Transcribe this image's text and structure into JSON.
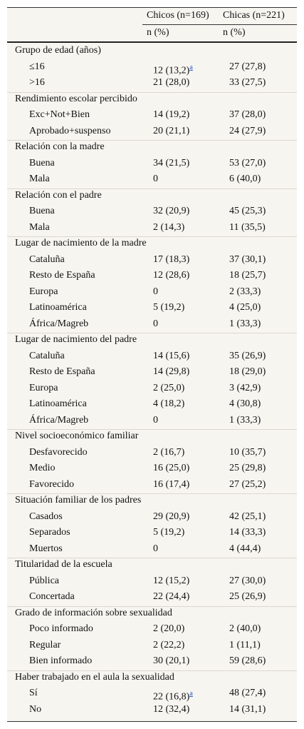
{
  "table": {
    "header": [
      [
        "Chicos (n=169)",
        "Chicas (n=221)"
      ],
      [
        "n (%)",
        "n (%)"
      ]
    ],
    "groups": [
      {
        "label": "Grupo de edad (años)",
        "rows": [
          {
            "label": "≤16",
            "values": [
              {
                "text": "12 (13,2)",
                "note": "a"
              },
              "27 (27,8)"
            ]
          },
          {
            "label": ">16",
            "values": [
              "21 (28,0)",
              "33 (27,5)"
            ]
          }
        ]
      },
      {
        "label": "Rendimiento escolar percibido",
        "rows": [
          {
            "label": "Exc+Not+Bien",
            "values": [
              "14 (19,2)",
              "37 (28,0)"
            ]
          },
          {
            "label": "Aprobado+suspenso",
            "values": [
              "20 (21,1)",
              "24 (27,9)"
            ]
          }
        ]
      },
      {
        "label": "Relación con la madre",
        "rows": [
          {
            "label": "Buena",
            "values": [
              "34 (21,5)",
              "53 (27,0)"
            ]
          },
          {
            "label": "Mala",
            "values": [
              "0",
              "6 (40,0)"
            ]
          }
        ]
      },
      {
        "label": "Relación con el padre",
        "rows": [
          {
            "label": "Buena",
            "values": [
              "32 (20,9)",
              "45 (25,3)"
            ]
          },
          {
            "label": "Mala",
            "values": [
              "2 (14,3)",
              "11 (35,5)"
            ]
          }
        ]
      },
      {
        "label": "Lugar de nacimiento de la madre",
        "rows": [
          {
            "label": "Cataluña",
            "values": [
              "17 (18,3)",
              "37 (30,1)"
            ]
          },
          {
            "label": "Resto de España",
            "values": [
              "12 (28,6)",
              "18 (25,7)"
            ]
          },
          {
            "label": "Europa",
            "values": [
              "0",
              "2 (33,3)"
            ]
          },
          {
            "label": "Latinoamérica",
            "values": [
              "5 (19,2)",
              "4 (25,0)"
            ]
          },
          {
            "label": "África/Magreb",
            "values": [
              "0",
              "1 (33,3)"
            ]
          }
        ]
      },
      {
        "label": "Lugar de nacimiento del padre",
        "rows": [
          {
            "label": "Cataluña",
            "values": [
              "14 (15,6)",
              "35 (26,9)"
            ]
          },
          {
            "label": "Resto de España",
            "values": [
              "14 (29,8)",
              "18 (29,0)"
            ]
          },
          {
            "label": "Europa",
            "values": [
              "2 (25,0)",
              "3 (42,9)"
            ]
          },
          {
            "label": "Latinoamérica",
            "values": [
              "4 (18,2)",
              "4 (30,8)"
            ]
          },
          {
            "label": "África/Magreb",
            "values": [
              "0",
              "1 (33,3)"
            ]
          }
        ]
      },
      {
        "label": "Nivel socioeconómico familiar",
        "rows": [
          {
            "label": "Desfavorecido",
            "values": [
              "2 (16,7)",
              "10 (35,7)"
            ]
          },
          {
            "label": "Medio",
            "values": [
              "16 (25,0)",
              "25 (29,8)"
            ]
          },
          {
            "label": "Favorecido",
            "values": [
              "16 (17,4)",
              "27 (25,2)"
            ]
          }
        ]
      },
      {
        "label": "Situación familiar de los padres",
        "rows": [
          {
            "label": "Casados",
            "values": [
              "29 (20,9)",
              "42 (25,1)"
            ]
          },
          {
            "label": "Separados",
            "values": [
              "5 (19,2)",
              "14 (33,3)"
            ]
          },
          {
            "label": "Muertos",
            "values": [
              "0",
              "4 (44,4)"
            ]
          }
        ]
      },
      {
        "label": "Titularidad de la escuela",
        "rows": [
          {
            "label": "Pública",
            "values": [
              "12 (15,2)",
              "27 (30,0)"
            ]
          },
          {
            "label": "Concertada",
            "values": [
              "22 (24,4)",
              "25 (26,9)"
            ]
          }
        ]
      },
      {
        "label": "Grado de información sobre sexualidad",
        "rows": [
          {
            "label": "Poco informado",
            "values": [
              "2 (20,0)",
              "2 (40,0)"
            ]
          },
          {
            "label": "Regular",
            "values": [
              "2 (22,2)",
              "1 (11,1)"
            ]
          },
          {
            "label": "Bien informado",
            "values": [
              "30 (20,1)",
              "59 (28,6)"
            ]
          }
        ]
      },
      {
        "label": "Haber trabajado en el aula la sexualidad",
        "rows": [
          {
            "label": "Sí",
            "values": [
              {
                "text": "22 (16,8)",
                "note": "a"
              },
              "48 (27,4)"
            ]
          },
          {
            "label": "No",
            "values": [
              "12 (32,4)",
              "14 (31,1)"
            ]
          }
        ]
      }
    ]
  }
}
